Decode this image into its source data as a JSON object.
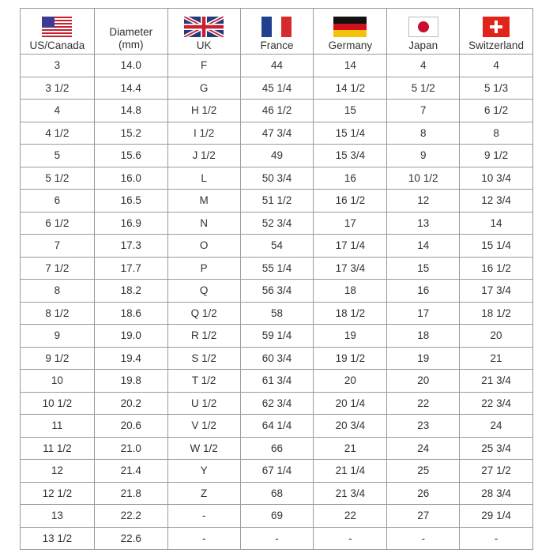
{
  "table": {
    "header": [
      "US/Canada",
      "Diameter (mm)",
      "UK",
      "France",
      "Germany",
      "Japan",
      "Switzerland"
    ],
    "rows": [
      [
        "3",
        "14.0",
        "F",
        "44",
        "14",
        "4",
        "4"
      ],
      [
        "3 1/2",
        "14.4",
        "G",
        "45 1/4",
        "14 1/2",
        "5 1/2",
        "5 1/3"
      ],
      [
        "4",
        "14.8",
        "H 1/2",
        "46 1/2",
        "15",
        "7",
        "6 1/2"
      ],
      [
        "4 1/2",
        "15.2",
        "I 1/2",
        "47 3/4",
        "15 1/4",
        "8",
        "8"
      ],
      [
        "5",
        "15.6",
        "J 1/2",
        "49",
        "15 3/4",
        "9",
        "9 1/2"
      ],
      [
        "5 1/2",
        "16.0",
        "L",
        "50 3/4",
        "16",
        "10 1/2",
        "10 3/4"
      ],
      [
        "6",
        "16.5",
        "M",
        "51 1/2",
        "16 1/2",
        "12",
        "12 3/4"
      ],
      [
        "6 1/2",
        "16.9",
        "N",
        "52 3/4",
        "17",
        "13",
        "14"
      ],
      [
        "7",
        "17.3",
        "O",
        "54",
        "17 1/4",
        "14",
        "15 1/4"
      ],
      [
        "7 1/2",
        "17.7",
        "P",
        "55 1/4",
        "17 3/4",
        "15",
        "16 1/2"
      ],
      [
        "8",
        "18.2",
        "Q",
        "56 3/4",
        "18",
        "16",
        "17 3/4"
      ],
      [
        "8 1/2",
        "18.6",
        "Q 1/2",
        "58",
        "18 1/2",
        "17",
        "18 1/2"
      ],
      [
        "9",
        "19.0",
        "R 1/2",
        "59 1/4",
        "19",
        "18",
        "20"
      ],
      [
        "9 1/2",
        "19.4",
        "S 1/2",
        "60 3/4",
        "19 1/2",
        "19",
        "21"
      ],
      [
        "10",
        "19.8",
        "T 1/2",
        "61 3/4",
        "20",
        "20",
        "21 3/4"
      ],
      [
        "10 1/2",
        "20.2",
        "U 1/2",
        "62 3/4",
        "20 1/4",
        "22",
        "22 3/4"
      ],
      [
        "11",
        "20.6",
        "V 1/2",
        "64 1/4",
        "20 3/4",
        "23",
        "24"
      ],
      [
        "11 1/2",
        "21.0",
        "W 1/2",
        "66",
        "21",
        "24",
        "25 3/4"
      ],
      [
        "12",
        "21.4",
        "Y",
        "67 1/4",
        "21 1/4",
        "25",
        "27 1/2"
      ],
      [
        "12 1/2",
        "21.8",
        "Z",
        "68",
        "21 3/4",
        "26",
        "28 3/4"
      ],
      [
        "13",
        "22.2",
        "-",
        "69",
        "22",
        "27",
        "29 1/4"
      ],
      [
        "13 1/2",
        "22.6",
        "-",
        "-",
        "-",
        "-",
        "-"
      ]
    ]
  }
}
